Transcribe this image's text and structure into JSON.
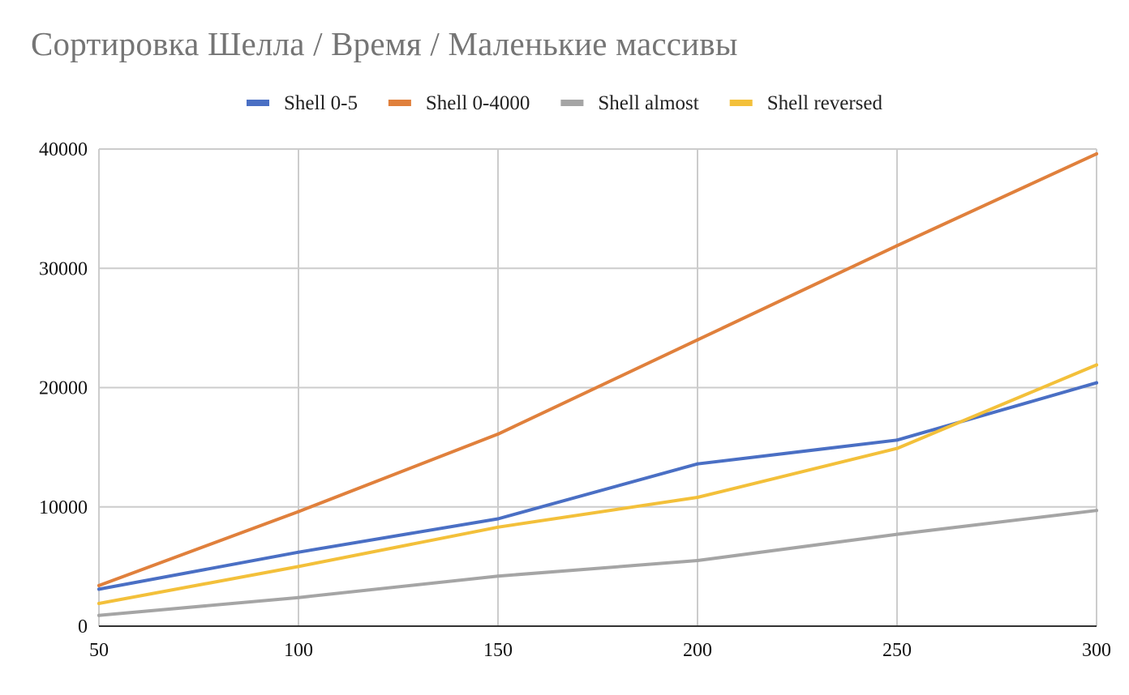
{
  "chart_data": {
    "type": "line",
    "title": "Сортировка Шелла / Время / Маленькие массивы",
    "xlabel": "",
    "ylabel": "",
    "x": [
      50,
      100,
      150,
      200,
      250,
      300
    ],
    "xticks": [
      "50",
      "100",
      "150",
      "200",
      "250",
      "300"
    ],
    "ylim": [
      0,
      40000
    ],
    "yticks": [
      "0",
      "10000",
      "20000",
      "30000",
      "40000"
    ],
    "grid": true,
    "legend_position": "top",
    "series": [
      {
        "name": "Shell 0-5",
        "color": "#4a6fc4",
        "values": [
          3100,
          6200,
          9000,
          13600,
          15600,
          20400
        ]
      },
      {
        "name": "Shell 0-4000",
        "color": "#e0803c",
        "values": [
          3400,
          9600,
          16100,
          24000,
          31900,
          39600
        ]
      },
      {
        "name": "Shell almost",
        "color": "#a5a5a5",
        "values": [
          900,
          2400,
          4200,
          5500,
          7700,
          9700
        ]
      },
      {
        "name": "Shell reversed",
        "color": "#f3c03a",
        "values": [
          1900,
          5000,
          8300,
          10800,
          14900,
          21900
        ]
      }
    ]
  }
}
